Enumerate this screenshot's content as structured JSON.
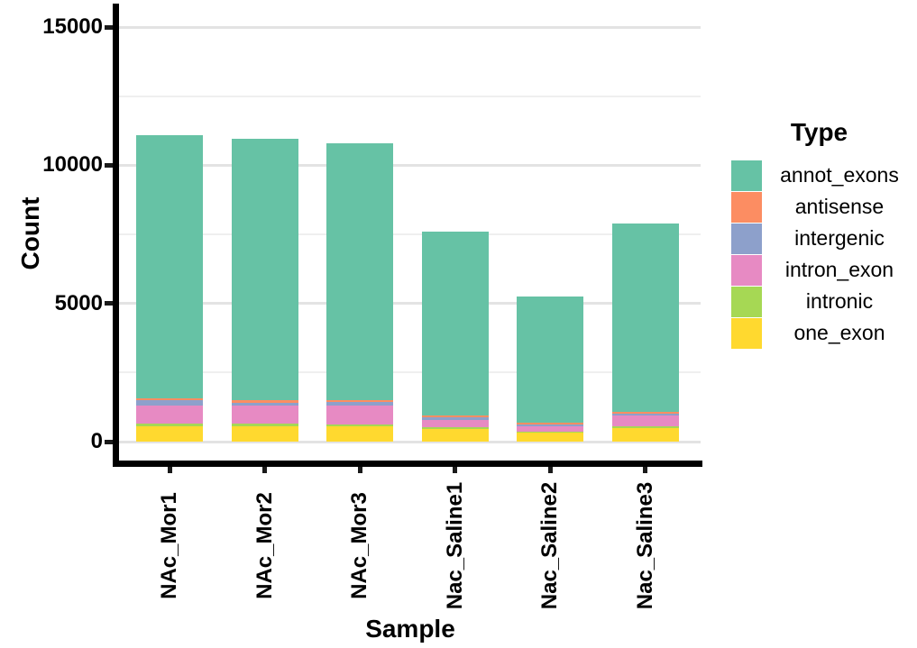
{
  "chart_data": {
    "type": "bar",
    "stacked": true,
    "orientation": "vertical",
    "title": "",
    "xlabel": "Sample",
    "ylabel": "Count",
    "legend_title": "Type",
    "legend_position": "right",
    "grid": "horizontal-major-and-minor",
    "background_color": "#ffffff",
    "axis_color": "#000000",
    "ylim": [
      0,
      15000
    ],
    "yticks": [
      0,
      5000,
      10000,
      15000
    ],
    "yticks_minor": [
      2500,
      7500,
      12500
    ],
    "categories": [
      "NAc_Mor1",
      "NAc_Mor2",
      "NAc_Mor3",
      "Nac_Saline1",
      "Nac_Saline2",
      "Nac_Saline3"
    ],
    "series": [
      {
        "name": "annot_exons",
        "color": "#66C2A5",
        "values": [
          9540,
          9460,
          9300,
          6650,
          4550,
          6815
        ]
      },
      {
        "name": "antisense",
        "color": "#FC8D62",
        "values": [
          65,
          90,
          75,
          75,
          65,
          65
        ]
      },
      {
        "name": "intergenic",
        "color": "#8DA0CB",
        "values": [
          185,
          90,
          120,
          90,
          65,
          65
        ]
      },
      {
        "name": "intron_exon",
        "color": "#E78AC3",
        "values": [
          660,
          670,
          670,
          270,
          205,
          390
        ]
      },
      {
        "name": "intronic",
        "color": "#A6D854",
        "values": [
          100,
          90,
          90,
          55,
          45,
          65
        ]
      },
      {
        "name": "one_exon",
        "color": "#FFD92F",
        "values": [
          550,
          550,
          545,
          460,
          320,
          500
        ]
      }
    ],
    "stacking_note": "first series (annot_exons) is the top segment of each bar; one_exon is at the bottom",
    "approx_totals": [
      11100,
      10950,
      10800,
      7600,
      5250,
      7900
    ]
  }
}
